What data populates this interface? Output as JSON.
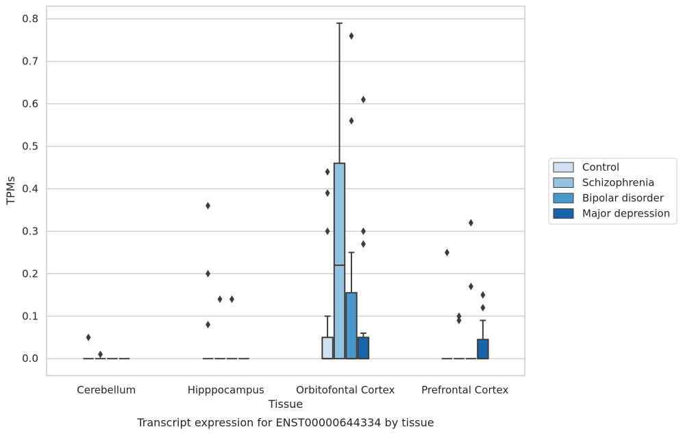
{
  "caption": "Transcript expression for ENST00000644334 by tissue",
  "chart_data": {
    "type": "box",
    "xlabel": "Tissue",
    "ylabel": "TPMs",
    "ylim": [
      -0.04,
      0.83
    ],
    "yticks": [
      0.0,
      0.1,
      0.2,
      0.3,
      0.4,
      0.5,
      0.6,
      0.7,
      0.8
    ],
    "ytick_labels": [
      "0.0",
      "0.1",
      "0.2",
      "0.3",
      "0.4",
      "0.5",
      "0.6",
      "0.7",
      "0.8"
    ],
    "grid": "horizontal",
    "legend_position": "right",
    "categories": [
      "Cerebellum",
      "Hipppocampus",
      "Orbitofontal Cortex",
      "Prefrontal Cortex"
    ],
    "series": [
      {
        "name": "Control",
        "color": "#d0e1f2",
        "boxes": [
          {
            "q1": 0,
            "median": 0,
            "q3": 0,
            "whisker_low": 0,
            "whisker_high": 0,
            "outliers": [
              0.05
            ]
          },
          {
            "q1": 0,
            "median": 0,
            "q3": 0,
            "whisker_low": 0,
            "whisker_high": 0,
            "outliers": [
              0.36,
              0.2,
              0.08
            ]
          },
          {
            "q1": 0,
            "median": 0,
            "q3": 0.05,
            "whisker_low": 0,
            "whisker_high": 0.1,
            "outliers": [
              0.44,
              0.39,
              0.3
            ]
          },
          {
            "q1": 0,
            "median": 0,
            "q3": 0,
            "whisker_low": 0,
            "whisker_high": 0,
            "outliers": [
              0.25
            ]
          }
        ]
      },
      {
        "name": "Schizophrenia",
        "color": "#94c4df",
        "boxes": [
          {
            "q1": 0,
            "median": 0,
            "q3": 0,
            "whisker_low": 0,
            "whisker_high": 0,
            "outliers": [
              0.01
            ]
          },
          {
            "q1": 0,
            "median": 0,
            "q3": 0,
            "whisker_low": 0,
            "whisker_high": 0,
            "outliers": [
              0.14
            ]
          },
          {
            "q1": 0,
            "median": 0.22,
            "q3": 0.46,
            "whisker_low": 0,
            "whisker_high": 0.79,
            "outliers": []
          },
          {
            "q1": 0,
            "median": 0,
            "q3": 0,
            "whisker_low": 0,
            "whisker_high": 0,
            "outliers": [
              0.1,
              0.09
            ]
          }
        ]
      },
      {
        "name": "Bipolar disorder",
        "color": "#4a98c9",
        "boxes": [
          {
            "q1": 0,
            "median": 0,
            "q3": 0,
            "whisker_low": 0,
            "whisker_high": 0,
            "outliers": []
          },
          {
            "q1": 0,
            "median": 0,
            "q3": 0,
            "whisker_low": 0,
            "whisker_high": 0,
            "outliers": [
              0.14
            ]
          },
          {
            "q1": 0,
            "median": 0,
            "q3": 0.155,
            "whisker_low": 0,
            "whisker_high": 0.25,
            "outliers": [
              0.76,
              0.56
            ]
          },
          {
            "q1": 0,
            "median": 0,
            "q3": 0,
            "whisker_low": 0,
            "whisker_high": 0,
            "outliers": [
              0.32,
              0.17
            ]
          }
        ]
      },
      {
        "name": "Major depression",
        "color": "#1764ab",
        "boxes": [
          {
            "q1": 0,
            "median": 0,
            "q3": 0,
            "whisker_low": 0,
            "whisker_high": 0,
            "outliers": []
          },
          {
            "q1": 0,
            "median": 0,
            "q3": 0,
            "whisker_low": 0,
            "whisker_high": 0,
            "outliers": []
          },
          {
            "q1": 0,
            "median": 0,
            "q3": 0.05,
            "whisker_low": 0,
            "whisker_high": 0.06,
            "outliers": [
              0.61,
              0.3,
              0.27
            ]
          },
          {
            "q1": 0,
            "median": 0,
            "q3": 0.045,
            "whisker_low": 0,
            "whisker_high": 0.09,
            "outliers": [
              0.15,
              0.12
            ]
          }
        ]
      }
    ]
  }
}
